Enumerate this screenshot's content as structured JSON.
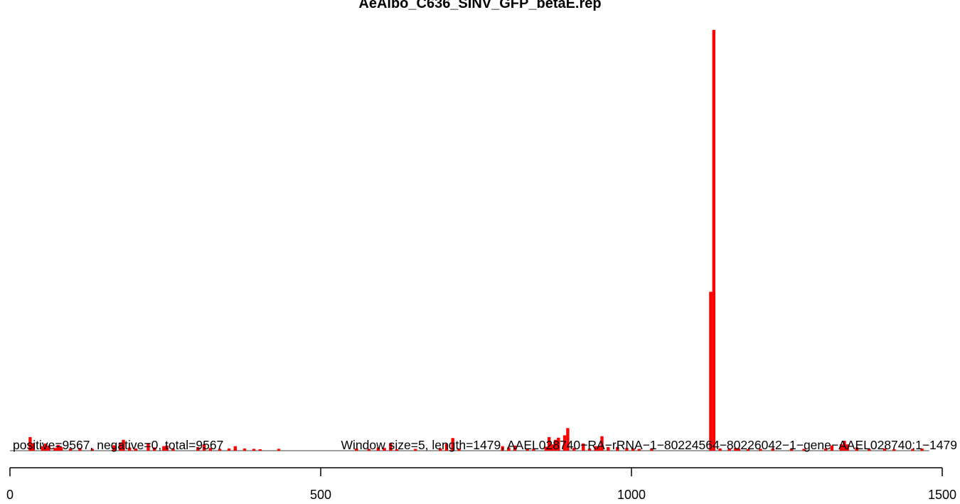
{
  "chart_data": {
    "type": "bar",
    "title": "AeAlbo_C636_SINV_GFP_betaE.rep",
    "xlabel": "",
    "ylabel": "",
    "xlim": [
      0,
      1500
    ],
    "ylim": [
      0,
      2350
    ],
    "bar_width": 5,
    "bar_color": "#ff0000",
    "grid": false,
    "legend": "none",
    "x_ticks": [
      0,
      500,
      1000,
      1500
    ],
    "x_tick_labels": [
      "0",
      "500",
      "1000",
      "1500"
    ],
    "overlay_texts": [
      "positive=9567, negative=0, total=9567",
      "Window size=5, length=1479, AAEL028740−RA−rRNA−1−80224564−80226042−1−gene−AAEL028740:1−1479"
    ],
    "bars": [
      {
        "x": 30,
        "y": 75
      },
      {
        "x": 35,
        "y": 42
      },
      {
        "x": 50,
        "y": 25
      },
      {
        "x": 55,
        "y": 40
      },
      {
        "x": 60,
        "y": 28
      },
      {
        "x": 70,
        "y": 15
      },
      {
        "x": 75,
        "y": 32
      },
      {
        "x": 80,
        "y": 20
      },
      {
        "x": 95,
        "y": 12
      },
      {
        "x": 110,
        "y": 15
      },
      {
        "x": 130,
        "y": 10
      },
      {
        "x": 165,
        "y": 30
      },
      {
        "x": 175,
        "y": 45
      },
      {
        "x": 180,
        "y": 60
      },
      {
        "x": 190,
        "y": 18
      },
      {
        "x": 200,
        "y": 12
      },
      {
        "x": 220,
        "y": 42
      },
      {
        "x": 230,
        "y": 18
      },
      {
        "x": 245,
        "y": 25
      },
      {
        "x": 250,
        "y": 28
      },
      {
        "x": 260,
        "y": 12
      },
      {
        "x": 300,
        "y": 20
      },
      {
        "x": 310,
        "y": 35
      },
      {
        "x": 320,
        "y": 15
      },
      {
        "x": 335,
        "y": 10
      },
      {
        "x": 350,
        "y": 12
      },
      {
        "x": 360,
        "y": 25
      },
      {
        "x": 375,
        "y": 12
      },
      {
        "x": 390,
        "y": 10
      },
      {
        "x": 400,
        "y": 8
      },
      {
        "x": 430,
        "y": 10
      },
      {
        "x": 555,
        "y": 12
      },
      {
        "x": 575,
        "y": 10
      },
      {
        "x": 590,
        "y": 18
      },
      {
        "x": 600,
        "y": 15
      },
      {
        "x": 610,
        "y": 42
      },
      {
        "x": 620,
        "y": 8
      },
      {
        "x": 650,
        "y": 10
      },
      {
        "x": 690,
        "y": 12
      },
      {
        "x": 700,
        "y": 38
      },
      {
        "x": 710,
        "y": 70
      },
      {
        "x": 720,
        "y": 12
      },
      {
        "x": 790,
        "y": 25
      },
      {
        "x": 800,
        "y": 18
      },
      {
        "x": 810,
        "y": 28
      },
      {
        "x": 830,
        "y": 12
      },
      {
        "x": 840,
        "y": 10
      },
      {
        "x": 860,
        "y": 22
      },
      {
        "x": 865,
        "y": 75
      },
      {
        "x": 870,
        "y": 35
      },
      {
        "x": 875,
        "y": 60
      },
      {
        "x": 880,
        "y": 72
      },
      {
        "x": 890,
        "y": 85
      },
      {
        "x": 895,
        "y": 125
      },
      {
        "x": 905,
        "y": 15
      },
      {
        "x": 920,
        "y": 40
      },
      {
        "x": 930,
        "y": 12
      },
      {
        "x": 940,
        "y": 25
      },
      {
        "x": 945,
        "y": 25
      },
      {
        "x": 950,
        "y": 80
      },
      {
        "x": 960,
        "y": 20
      },
      {
        "x": 975,
        "y": 20
      },
      {
        "x": 990,
        "y": 15
      },
      {
        "x": 1000,
        "y": 12
      },
      {
        "x": 1010,
        "y": 10
      },
      {
        "x": 1030,
        "y": 12
      },
      {
        "x": 1125,
        "y": 880
      },
      {
        "x": 1130,
        "y": 2330
      },
      {
        "x": 1140,
        "y": 12
      },
      {
        "x": 1155,
        "y": 10
      },
      {
        "x": 1165,
        "y": 15
      },
      {
        "x": 1170,
        "y": 12
      },
      {
        "x": 1185,
        "y": 8
      },
      {
        "x": 1205,
        "y": 10
      },
      {
        "x": 1225,
        "y": 12
      },
      {
        "x": 1255,
        "y": 8
      },
      {
        "x": 1275,
        "y": 10
      },
      {
        "x": 1310,
        "y": 12
      },
      {
        "x": 1320,
        "y": 28
      },
      {
        "x": 1335,
        "y": 35
      },
      {
        "x": 1340,
        "y": 55
      },
      {
        "x": 1345,
        "y": 35
      },
      {
        "x": 1360,
        "y": 18
      },
      {
        "x": 1380,
        "y": 10
      },
      {
        "x": 1405,
        "y": 12
      },
      {
        "x": 1420,
        "y": 8
      },
      {
        "x": 1450,
        "y": 10
      },
      {
        "x": 1465,
        "y": 12
      }
    ]
  }
}
